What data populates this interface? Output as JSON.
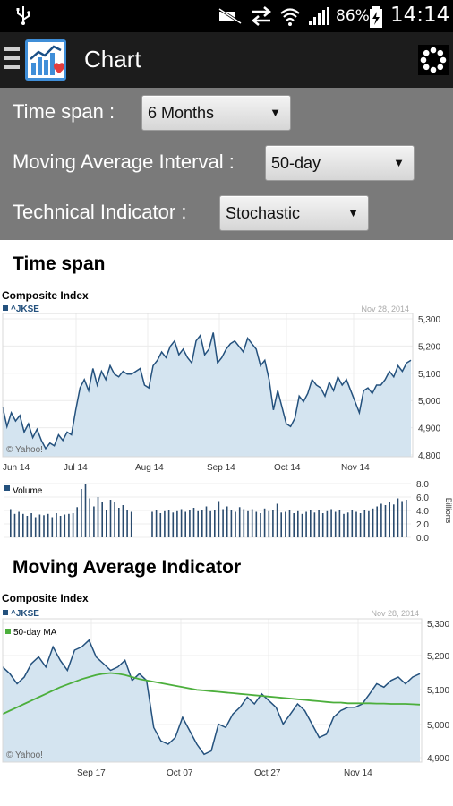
{
  "status_bar": {
    "battery": "86%",
    "time": "14:14",
    "icons": [
      "usb-icon",
      "mute-icon",
      "data-transfer-icon",
      "wifi-icon",
      "signal-icon",
      "battery-charging-icon"
    ]
  },
  "action_bar": {
    "title": "Chart",
    "icons": [
      "menu-icon",
      "app-logo-icon",
      "loading-spinner-icon"
    ]
  },
  "settings": {
    "time_span_label": "Time span :",
    "time_span_value": "6 Months",
    "ma_label": "Moving Average Interval :",
    "ma_value": "50-day",
    "ti_label": "Technical Indicator :",
    "ti_value": "Stochastic"
  },
  "sections": {
    "time_span_title": "Time span",
    "ma_title": "Moving Average Indicator"
  },
  "chart_data": [
    {
      "type": "area",
      "title": "Composite Index",
      "series_label": "^JKSE",
      "date": "Nov 28, 2014",
      "watermark": "© Yahoo!",
      "x_labels": [
        "Jun 14",
        "Jul 14",
        "Aug 14",
        "Sep 14",
        "Oct 14",
        "Nov 14"
      ],
      "y_labels": [
        "5,300",
        "5,200",
        "5,100",
        "5,000",
        "4,900",
        "4,800"
      ],
      "ylim": [
        4800,
        5300
      ],
      "series": [
        {
          "name": "^JKSE",
          "values": [
            4980,
            4910,
            4960,
            4930,
            4950,
            4890,
            4920,
            4870,
            4900,
            4860,
            4830,
            4850,
            4840,
            4880,
            4860,
            4890,
            4880,
            4970,
            5050,
            5080,
            5040,
            5120,
            5060,
            5110,
            5080,
            5130,
            5100,
            5090,
            5110,
            5100,
            5100,
            5110,
            5120,
            5060,
            5050,
            5130,
            5150,
            5180,
            5160,
            5200,
            5220,
            5170,
            5190,
            5160,
            5140,
            5220,
            5240,
            5170,
            5190,
            5250,
            5140,
            5160,
            5190,
            5210,
            5220,
            5200,
            5180,
            5230,
            5210,
            5190,
            5130,
            5150,
            5080,
            4970,
            5040,
            4980,
            4920,
            4910,
            4940,
            5020,
            5000,
            5030,
            5080,
            5060,
            5050,
            5020,
            5070,
            5040,
            5090,
            5060,
            5080,
            5040,
            5000,
            4960,
            5040,
            5050,
            5030,
            5060,
            5060,
            5080,
            5110,
            5090,
            5130,
            5110,
            5140,
            5150
          ]
        }
      ]
    },
    {
      "type": "bar",
      "title": "Volume",
      "unit": "Billions",
      "y_labels": [
        "8.0",
        "6.0",
        "4.0",
        "2.0",
        "0.0"
      ],
      "ylim": [
        0,
        8
      ],
      "values": [
        4.2,
        3.5,
        3.8,
        3.5,
        3.2,
        3.6,
        3.0,
        3.4,
        3.3,
        3.5,
        3.0,
        3.6,
        3.2,
        3.4,
        3.5,
        3.6,
        4.5,
        7.2,
        8.0,
        5.8,
        4.6,
        6.0,
        5.2,
        4.0,
        5.6,
        5.2,
        4.4,
        4.8,
        4.0,
        3.8,
        0,
        0,
        0,
        0,
        3.8,
        4.0,
        3.6,
        3.9,
        4.1,
        3.7,
        3.9,
        4.2,
        3.8,
        4.0,
        4.4,
        3.9,
        4.1,
        4.6,
        3.9,
        4.0,
        5.4,
        4.2,
        4.6,
        4.0,
        3.8,
        4.5,
        4.2,
        3.9,
        4.2,
        3.8,
        3.6,
        4.3,
        3.9,
        4.0,
        5.0,
        3.7,
        3.8,
        4.1,
        3.6,
        3.9,
        3.5,
        3.8,
        4.0,
        3.7,
        4.1,
        3.6,
        3.9,
        4.2,
        3.8,
        4.0,
        3.5,
        3.7,
        4.0,
        3.8,
        3.6,
        4.1,
        3.9,
        4.3,
        4.6,
        5.0,
        4.8,
        5.3,
        4.9,
        5.8,
        5.4,
        5.6
      ]
    },
    {
      "type": "line",
      "title": "Composite Index",
      "series_label": "^JKSE",
      "legend_ma": "50-day MA",
      "date": "Nov 28, 2014",
      "watermark": "© Yahoo!",
      "x_labels": [
        "Sep 17",
        "Oct 07",
        "Oct 27",
        "Nov 14"
      ],
      "y_labels": [
        "5,300",
        "5,200",
        "5,100",
        "5,000",
        "4,900"
      ],
      "ylim": [
        4900,
        5300
      ],
      "series": [
        {
          "name": "^JKSE",
          "values": [
            5170,
            5150,
            5120,
            5140,
            5180,
            5200,
            5170,
            5230,
            5190,
            5160,
            5220,
            5230,
            5250,
            5200,
            5180,
            5160,
            5170,
            5190,
            5130,
            5150,
            5130,
            4990,
            4950,
            4940,
            4960,
            5020,
            4980,
            4940,
            4910,
            4920,
            5000,
            4990,
            5030,
            5050,
            5080,
            5060,
            5090,
            5070,
            5050,
            5000,
            5030,
            5060,
            5040,
            5000,
            4960,
            4970,
            5020,
            5040,
            5050,
            5050,
            5060,
            5090,
            5120,
            5110,
            5130,
            5140,
            5120,
            5140,
            5150
          ]
        },
        {
          "name": "50-day MA",
          "values": [
            5030,
            5040,
            5050,
            5060,
            5070,
            5080,
            5090,
            5100,
            5110,
            5118,
            5126,
            5134,
            5140,
            5146,
            5150,
            5152,
            5150,
            5146,
            5140,
            5134,
            5130,
            5126,
            5122,
            5118,
            5114,
            5110,
            5106,
            5102,
            5100,
            5098,
            5096,
            5094,
            5092,
            5090,
            5088,
            5086,
            5084,
            5082,
            5080,
            5078,
            5076,
            5074,
            5072,
            5070,
            5068,
            5066,
            5064,
            5064,
            5062,
            5062,
            5062,
            5062,
            5061,
            5061,
            5060,
            5060,
            5060,
            5059,
            5058
          ]
        }
      ]
    }
  ],
  "colors": {
    "area_fill": "#d4e4f0",
    "line": "#24517d",
    "ma_line": "#4caf3c",
    "volume_bar": "#2a4b6e"
  }
}
